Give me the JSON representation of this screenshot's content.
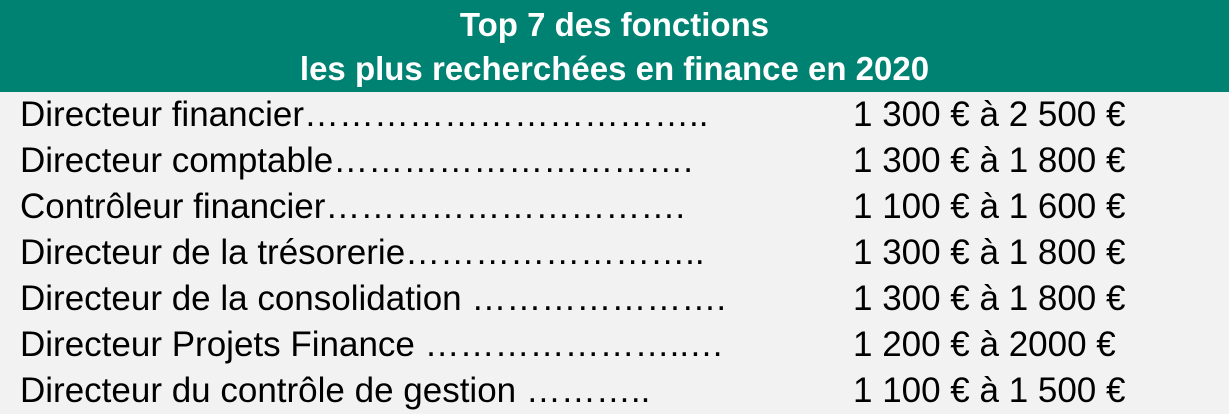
{
  "header": {
    "title_line1": "Top 7 des fonctions",
    "title_line2": "les plus recherchées en finance en 2020"
  },
  "rows": [
    {
      "label": "Directeur financier……………………………..",
      "salary": "1 300 € à 2 500 €"
    },
    {
      "label": "Directeur comptable………………………….",
      "salary": "1 300 € à 1 800 €"
    },
    {
      "label": "Contrôleur financier………………………….",
      "salary": "1 100 € à 1 600 €"
    },
    {
      "label": "Directeur de la trésorerie……………………..",
      "salary": "1 300 € à 1 800 €"
    },
    {
      "label": "Directeur de la consolidation ………………….",
      "salary": "1 300 € à 1 800 €"
    },
    {
      "label": "Directeur Projets Finance …………………..…",
      "salary": "1 200 € à 2000 €"
    },
    {
      "label": "Directeur du contrôle de gestion      ………..",
      "salary": "1 100 € à 1 500 €"
    }
  ]
}
